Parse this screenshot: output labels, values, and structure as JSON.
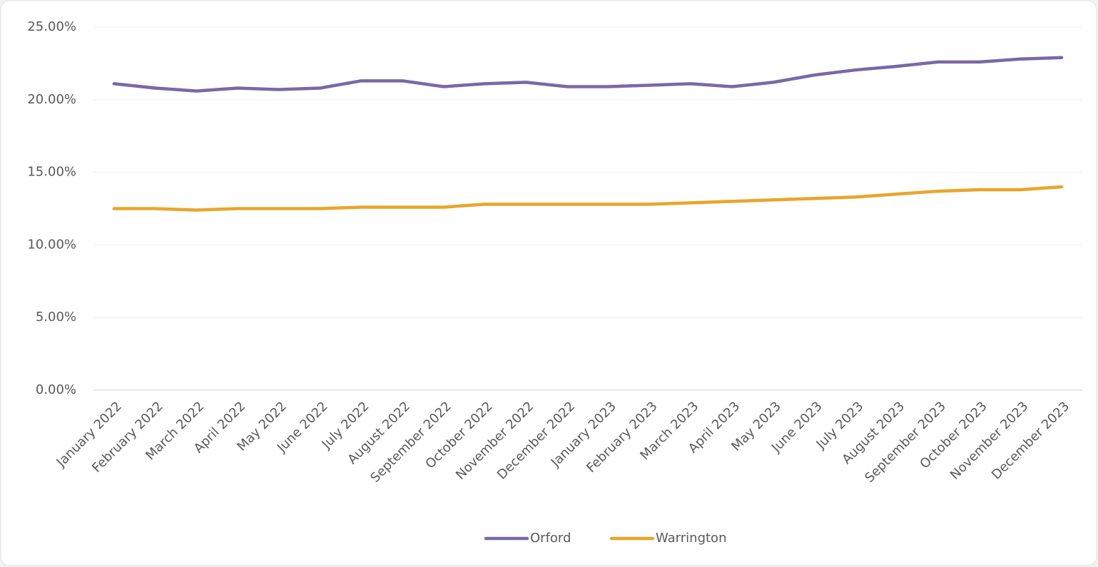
{
  "chart_data": {
    "type": "line",
    "categories": [
      "January 2022",
      "February 2022",
      "March 2022",
      "April 2022",
      "May 2022",
      "June 2022",
      "July 2022",
      "August 2022",
      "September 2022",
      "October 2022",
      "November 2022",
      "December 2022",
      "January 2023",
      "February 2023",
      "March 2023",
      "April 2023",
      "May 2023",
      "June 2023",
      "July 2023",
      "August 2023",
      "September 2023",
      "October 2023",
      "November 2023",
      "December 2023"
    ],
    "series": [
      {
        "name": "Orford",
        "color": "#7b68a6",
        "values": [
          21.1,
          20.8,
          20.6,
          20.8,
          20.7,
          20.8,
          21.3,
          21.3,
          20.9,
          21.1,
          21.2,
          20.9,
          20.9,
          21.0,
          21.1,
          20.9,
          21.2,
          21.7,
          22.05,
          22.3,
          22.6,
          22.6,
          22.8,
          22.9
        ]
      },
      {
        "name": "Warrington",
        "color": "#e9a52b",
        "values": [
          12.5,
          12.5,
          12.4,
          12.5,
          12.5,
          12.5,
          12.6,
          12.6,
          12.6,
          12.8,
          12.8,
          12.8,
          12.8,
          12.8,
          12.9,
          13.0,
          13.1,
          13.2,
          13.3,
          13.5,
          13.7,
          13.8,
          13.8,
          14.0
        ]
      }
    ],
    "ylim": [
      0,
      25
    ],
    "yticks": [
      {
        "value": 0,
        "label": "0.00%"
      },
      {
        "value": 5,
        "label": "5.00%"
      },
      {
        "value": 10,
        "label": "10.00%"
      },
      {
        "value": 15,
        "label": "15.00%"
      },
      {
        "value": 20,
        "label": "20.00%"
      },
      {
        "value": 25,
        "label": "25.00%"
      }
    ],
    "grid": true,
    "legend": "bottom"
  }
}
